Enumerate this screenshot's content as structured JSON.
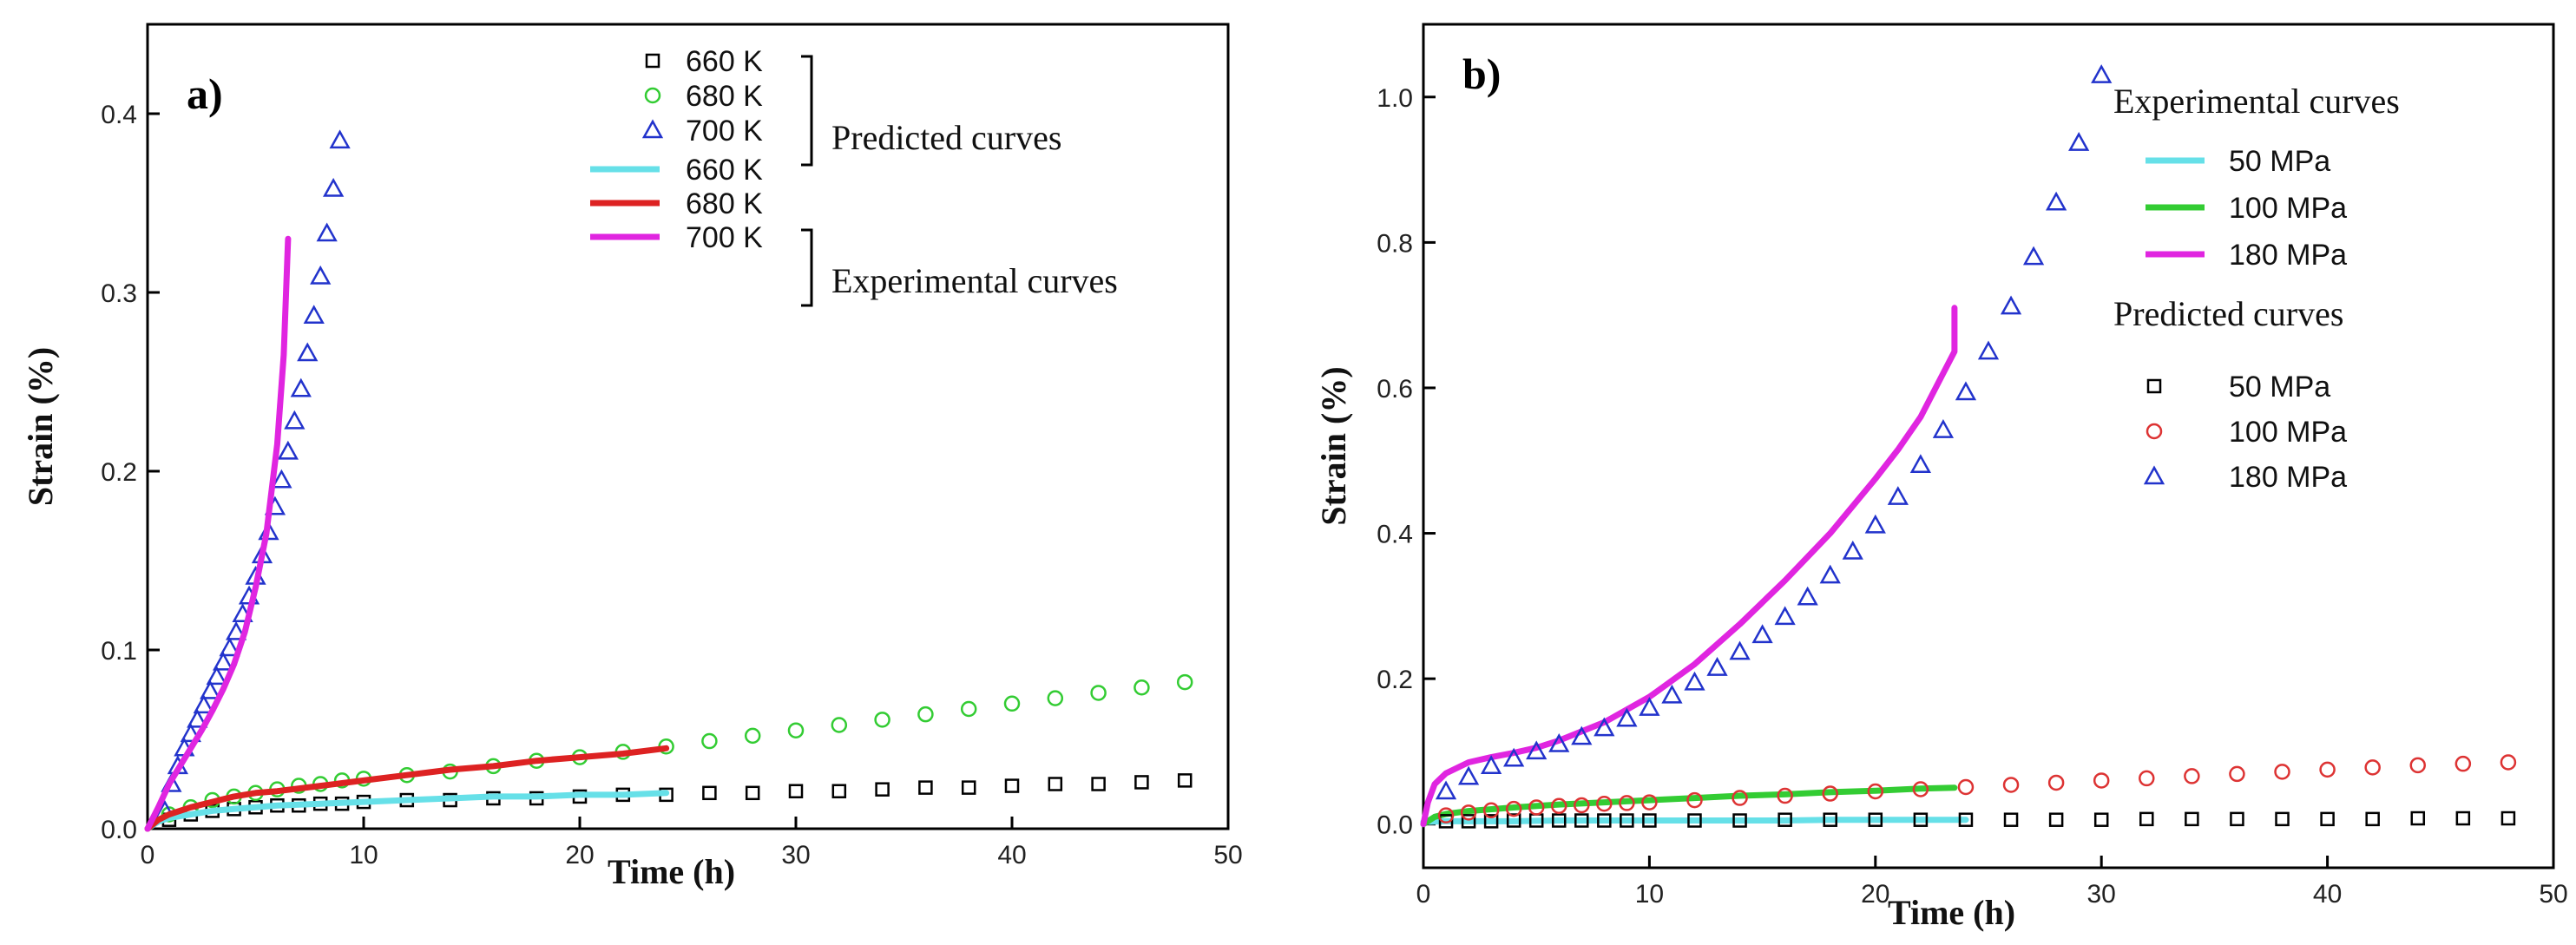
{
  "chart_data": [
    {
      "type": "scatter",
      "panel_label": "a)",
      "xlabel": "Time (h)",
      "ylabel": "Strain (%)",
      "xlim": [
        0,
        50
      ],
      "ylim": [
        0,
        0.45
      ],
      "x_ticks": [
        "0",
        "10",
        "20",
        "30",
        "40",
        "50"
      ],
      "y_ticks": [
        "0.0",
        "0.1",
        "0.2",
        "0.3",
        "0.4"
      ],
      "legend": {
        "placement": "top-right",
        "predicted_title": "Predicted curves",
        "experimental_title": "Experimental curves"
      },
      "series": [
        {
          "name": "660 K",
          "group": "Predicted curves",
          "kind": "predicted",
          "marker": "square",
          "color": "#000000",
          "x": [
            1,
            2,
            3,
            4,
            5,
            6,
            7,
            8,
            9,
            10,
            12,
            14,
            16,
            18,
            20,
            22,
            24,
            26,
            28,
            30,
            32,
            34,
            36,
            38,
            40,
            42,
            44,
            46,
            48
          ],
          "y": [
            0.005,
            0.008,
            0.01,
            0.011,
            0.012,
            0.013,
            0.013,
            0.014,
            0.014,
            0.015,
            0.016,
            0.016,
            0.017,
            0.017,
            0.018,
            0.019,
            0.019,
            0.02,
            0.02,
            0.021,
            0.021,
            0.022,
            0.023,
            0.023,
            0.024,
            0.025,
            0.025,
            0.026,
            0.027
          ]
        },
        {
          "name": "680 K",
          "group": "Predicted curves",
          "kind": "predicted",
          "marker": "circle",
          "color": "#33cc33",
          "x": [
            1,
            2,
            3,
            4,
            5,
            6,
            7,
            8,
            9,
            10,
            12,
            14,
            16,
            18,
            20,
            22,
            24,
            26,
            28,
            30,
            32,
            34,
            36,
            38,
            40,
            42,
            44,
            46,
            48
          ],
          "y": [
            0.008,
            0.012,
            0.016,
            0.018,
            0.02,
            0.022,
            0.024,
            0.025,
            0.027,
            0.028,
            0.03,
            0.032,
            0.035,
            0.038,
            0.04,
            0.043,
            0.046,
            0.049,
            0.052,
            0.055,
            0.058,
            0.061,
            0.064,
            0.067,
            0.07,
            0.073,
            0.076,
            0.079,
            0.082
          ]
        },
        {
          "name": "700 K",
          "group": "Predicted curves",
          "kind": "predicted",
          "marker": "triangle",
          "color": "#2233cc",
          "x": [
            0.8,
            1.1,
            1.4,
            1.7,
            2.0,
            2.3,
            2.6,
            2.9,
            3.2,
            3.5,
            3.8,
            4.1,
            4.4,
            4.7,
            5.0,
            5.3,
            5.6,
            5.9,
            6.2,
            6.5,
            6.8,
            7.1,
            7.4,
            7.7,
            8.0,
            8.3,
            8.6,
            8.9
          ],
          "y": [
            0.01,
            0.025,
            0.035,
            0.045,
            0.053,
            0.061,
            0.069,
            0.077,
            0.085,
            0.093,
            0.101,
            0.11,
            0.12,
            0.13,
            0.141,
            0.153,
            0.166,
            0.18,
            0.195,
            0.211,
            0.228,
            0.246,
            0.266,
            0.287,
            0.309,
            0.333,
            0.358,
            0.385
          ]
        },
        {
          "name": "660 K",
          "group": "Experimental curves",
          "kind": "experimental",
          "color": "#66e0e8",
          "x": [
            0,
            0.5,
            1,
            2,
            3,
            4,
            5,
            6,
            8,
            10,
            12,
            14,
            16,
            18,
            20,
            22,
            24
          ],
          "y": [
            0,
            0.004,
            0.006,
            0.008,
            0.01,
            0.011,
            0.012,
            0.013,
            0.014,
            0.015,
            0.016,
            0.017,
            0.018,
            0.018,
            0.019,
            0.019,
            0.02
          ]
        },
        {
          "name": "680 K",
          "group": "Experimental curves",
          "kind": "experimental",
          "color": "#dd2222",
          "x": [
            0,
            0.5,
            1,
            2,
            3,
            4,
            5,
            6,
            8,
            10,
            12,
            14,
            16,
            18,
            20,
            22,
            24
          ],
          "y": [
            0,
            0.005,
            0.008,
            0.012,
            0.015,
            0.018,
            0.02,
            0.021,
            0.024,
            0.027,
            0.03,
            0.033,
            0.035,
            0.038,
            0.04,
            0.042,
            0.045
          ]
        },
        {
          "name": "700 K",
          "group": "Experimental curves",
          "kind": "experimental",
          "color": "#e025e0",
          "x": [
            0,
            0.5,
            1,
            1.5,
            2,
            2.5,
            3,
            3.5,
            4,
            4.5,
            5,
            5.5,
            6,
            6.3,
            6.5
          ],
          "y": [
            0,
            0.012,
            0.025,
            0.035,
            0.045,
            0.055,
            0.066,
            0.078,
            0.092,
            0.11,
            0.135,
            0.165,
            0.215,
            0.265,
            0.33
          ]
        }
      ]
    },
    {
      "type": "scatter",
      "panel_label": "b)",
      "xlabel": "Time (h)",
      "ylabel": "Strain (%)",
      "xlim": [
        0,
        50
      ],
      "ylim": [
        -0.06,
        1.1
      ],
      "x_ticks": [
        "0",
        "10",
        "20",
        "30",
        "40",
        "50"
      ],
      "y_ticks": [
        "0.0",
        "0.2",
        "0.4",
        "0.6",
        "0.8",
        "1.0"
      ],
      "legend": {
        "placement": "top-right",
        "experimental_title": "Experimental curves",
        "predicted_title": "Predicted curves"
      },
      "series": [
        {
          "name": "50 MPa",
          "group": "Experimental curves",
          "kind": "experimental",
          "color": "#66e0e8",
          "x": [
            0,
            1,
            2,
            4,
            6,
            8,
            10,
            12,
            14,
            16,
            18,
            20,
            22,
            24
          ],
          "y": [
            0.003,
            0.004,
            0.004,
            0.004,
            0.005,
            0.005,
            0.005,
            0.005,
            0.005,
            0.005,
            0.006,
            0.006,
            0.006,
            0.006
          ]
        },
        {
          "name": "100 MPa",
          "group": "Experimental curves",
          "kind": "experimental",
          "color": "#33cc33",
          "x": [
            0,
            0.5,
            1,
            2,
            4,
            6,
            8,
            10,
            12,
            14,
            16,
            18,
            20,
            22,
            23.5
          ],
          "y": [
            0,
            0.01,
            0.014,
            0.018,
            0.023,
            0.027,
            0.03,
            0.033,
            0.036,
            0.039,
            0.041,
            0.044,
            0.046,
            0.049,
            0.05
          ]
        },
        {
          "name": "180 MPa",
          "group": "Experimental curves",
          "kind": "experimental",
          "color": "#e025e0",
          "x": [
            0,
            0.2,
            0.5,
            1,
            2,
            3,
            4,
            5,
            6,
            8,
            10,
            12,
            14,
            16,
            18,
            20,
            21,
            22,
            23,
            23.5,
            23.5
          ],
          "y": [
            0,
            0.03,
            0.055,
            0.07,
            0.085,
            0.092,
            0.098,
            0.105,
            0.115,
            0.14,
            0.175,
            0.22,
            0.275,
            0.335,
            0.4,
            0.475,
            0.515,
            0.56,
            0.62,
            0.65,
            0.71
          ]
        },
        {
          "name": "50 MPa",
          "group": "Predicted curves",
          "kind": "predicted",
          "marker": "square",
          "color": "#000000",
          "x": [
            1,
            2,
            3,
            4,
            5,
            6,
            7,
            8,
            9,
            10,
            12,
            14,
            16,
            18,
            20,
            22,
            24,
            26,
            28,
            30,
            32,
            34,
            36,
            38,
            40,
            42,
            44,
            46,
            48
          ],
          "y": [
            0.004,
            0.004,
            0.004,
            0.005,
            0.005,
            0.005,
            0.005,
            0.005,
            0.005,
            0.005,
            0.005,
            0.005,
            0.006,
            0.006,
            0.006,
            0.006,
            0.006,
            0.006,
            0.006,
            0.006,
            0.007,
            0.007,
            0.007,
            0.007,
            0.007,
            0.007,
            0.008,
            0.008,
            0.008
          ]
        },
        {
          "name": "100 MPa",
          "group": "Predicted curves",
          "kind": "predicted",
          "marker": "circle",
          "color": "#dd3333",
          "x": [
            1,
            2,
            3,
            4,
            5,
            6,
            7,
            8,
            9,
            10,
            12,
            14,
            16,
            18,
            20,
            22,
            24,
            26,
            28,
            30,
            32,
            34,
            36,
            38,
            40,
            42,
            44,
            46,
            48
          ],
          "y": [
            0.012,
            0.016,
            0.019,
            0.021,
            0.023,
            0.025,
            0.026,
            0.028,
            0.029,
            0.03,
            0.033,
            0.036,
            0.039,
            0.042,
            0.045,
            0.048,
            0.051,
            0.054,
            0.057,
            0.06,
            0.063,
            0.066,
            0.069,
            0.072,
            0.075,
            0.078,
            0.081,
            0.083,
            0.085
          ]
        },
        {
          "name": "180 MPa",
          "group": "Predicted curves",
          "kind": "predicted",
          "marker": "triangle",
          "color": "#2233cc",
          "x": [
            1,
            2,
            3,
            4,
            5,
            6,
            7,
            8,
            9,
            10,
            11,
            12,
            13,
            14,
            15,
            16,
            17,
            18,
            19,
            20,
            21,
            22,
            23,
            24,
            25,
            26,
            27,
            28,
            29,
            30
          ],
          "y": [
            0.045,
            0.065,
            0.08,
            0.09,
            0.1,
            0.11,
            0.12,
            0.132,
            0.145,
            0.16,
            0.177,
            0.195,
            0.215,
            0.237,
            0.26,
            0.285,
            0.312,
            0.342,
            0.375,
            0.411,
            0.45,
            0.494,
            0.542,
            0.594,
            0.65,
            0.712,
            0.78,
            0.855,
            0.937,
            1.03
          ]
        }
      ]
    }
  ]
}
